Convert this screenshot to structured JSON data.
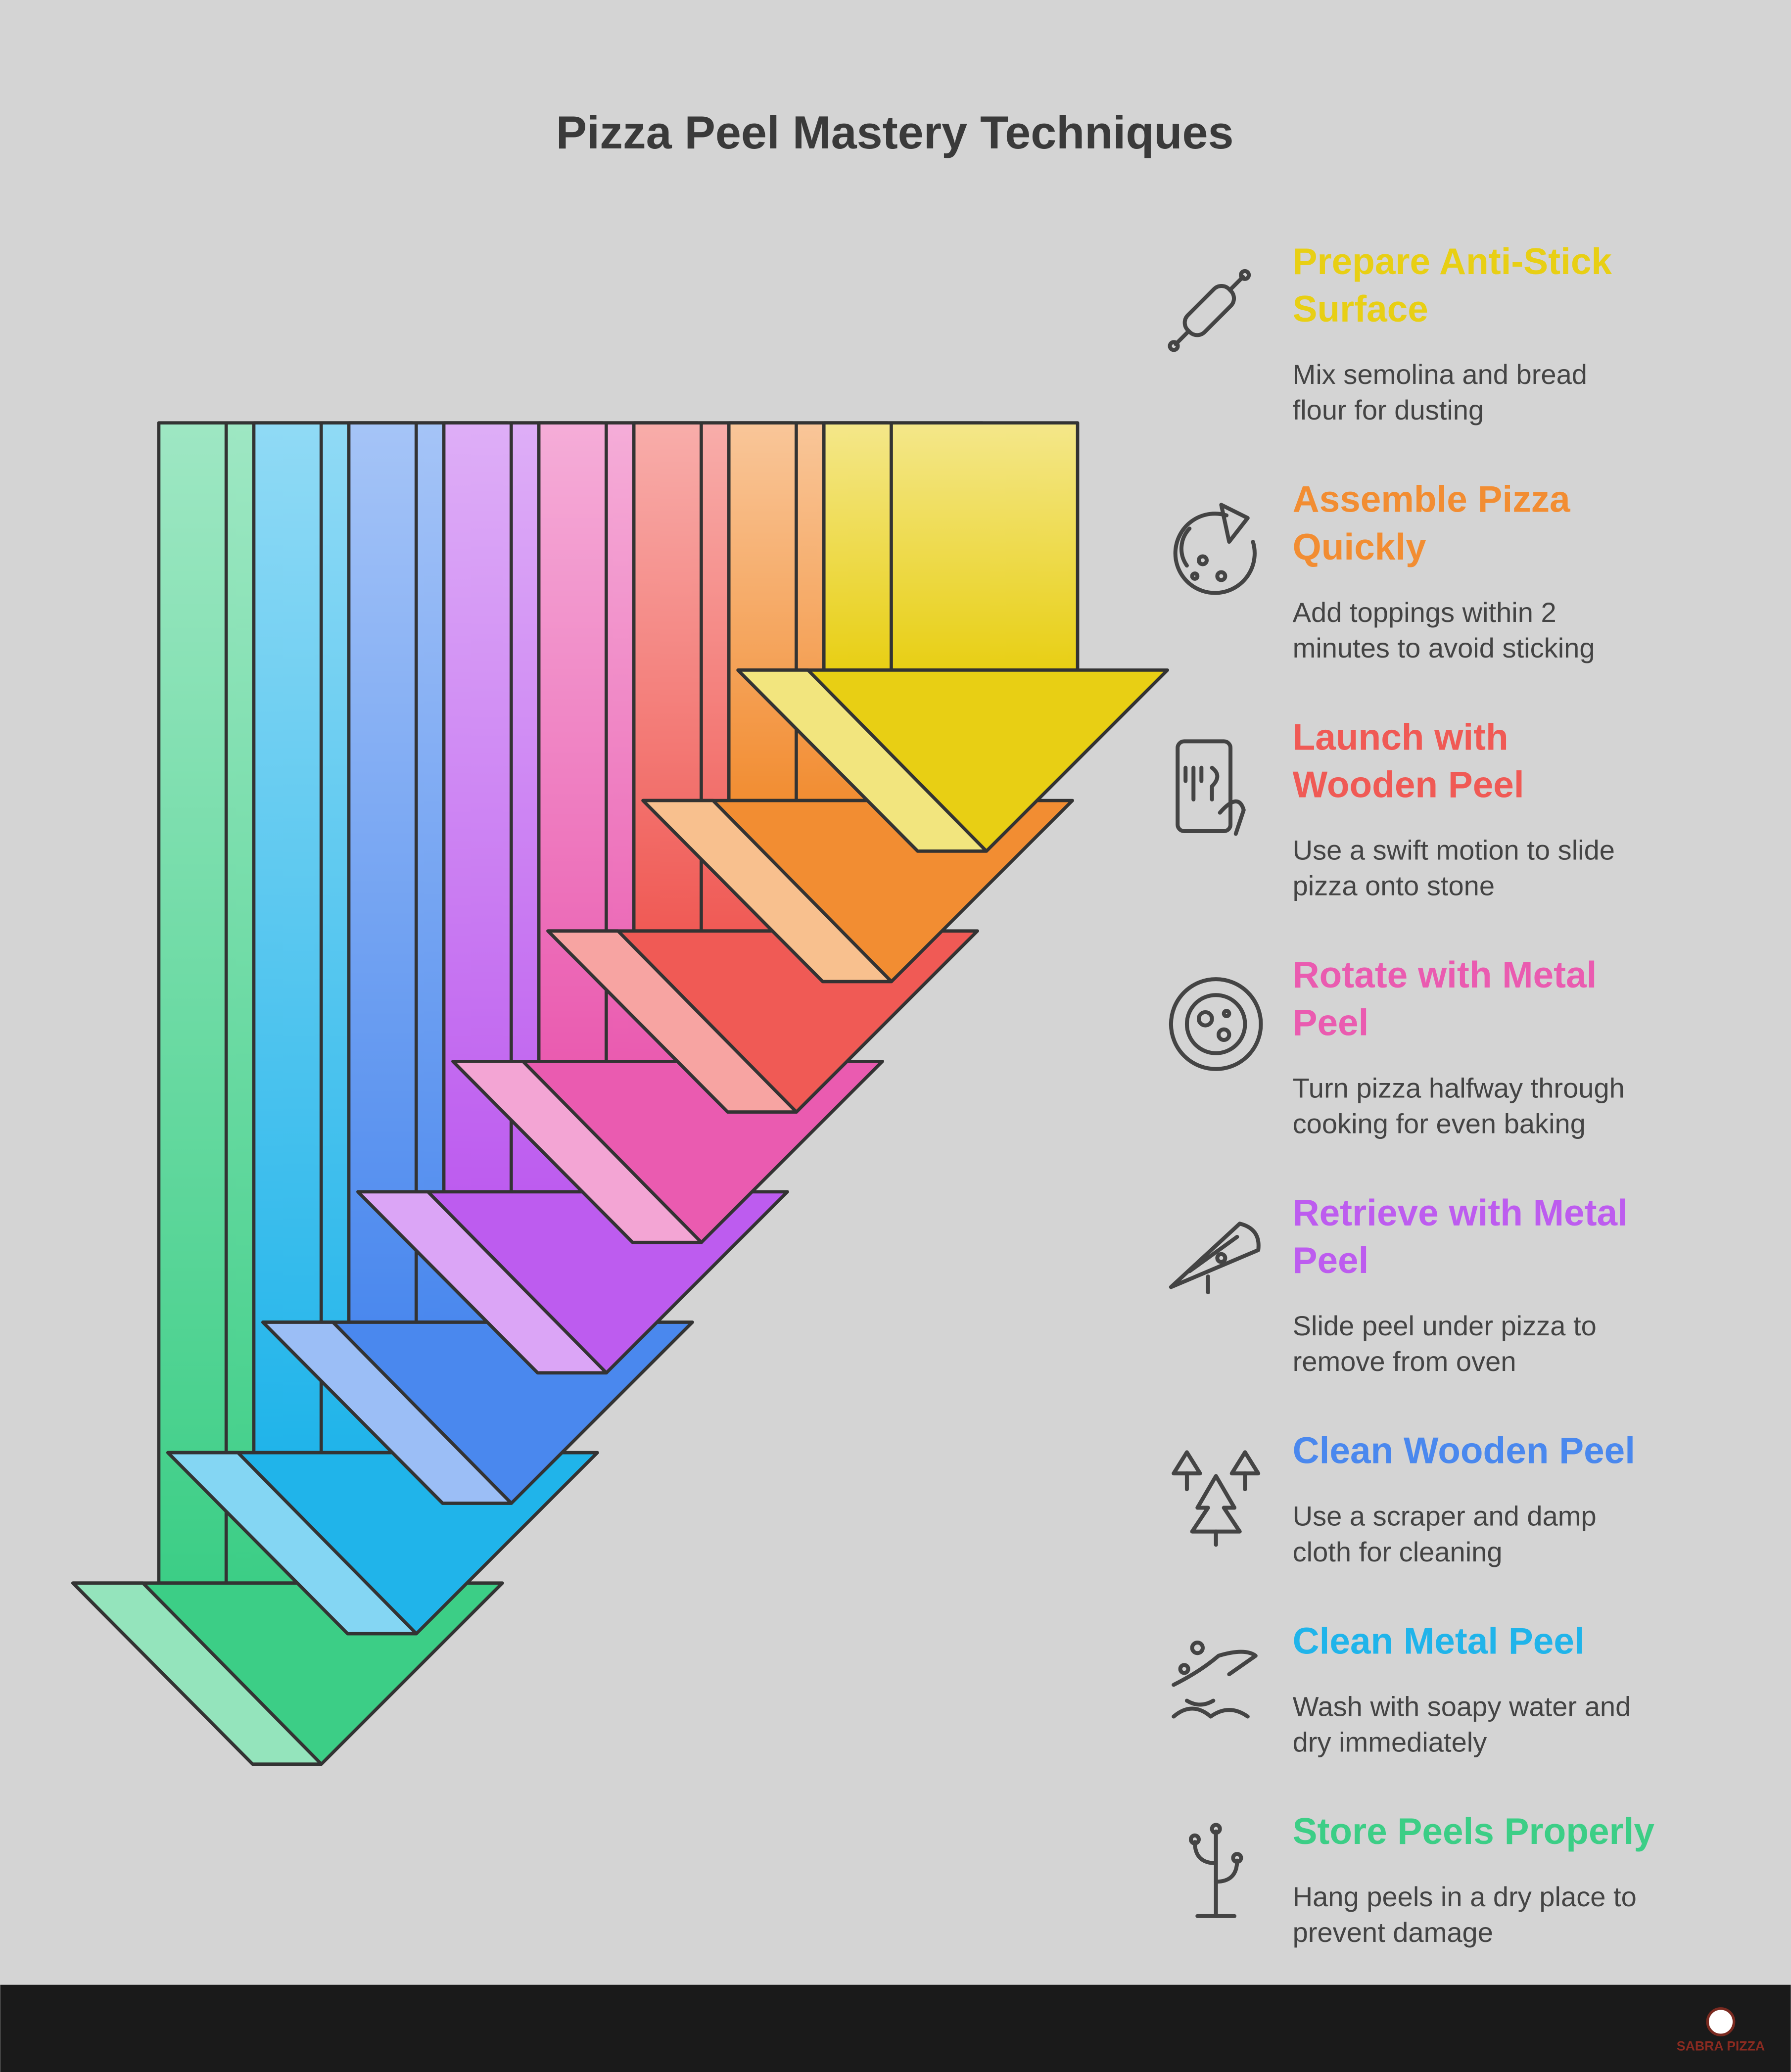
{
  "header": {
    "title": "Pizza Peel Mastery Techniques"
  },
  "items": [
    {
      "title": [
        "Prepare Anti-Stick",
        "Surface"
      ],
      "description": [
        "Mix semolina and bread",
        "flour for dusting"
      ],
      "color": "#e8cf14"
    },
    {
      "title": [
        "Assemble Pizza",
        "Quickly"
      ],
      "description": [
        "Add toppings within 2",
        "minutes to avoid sticking"
      ],
      "color": "#f28d32"
    },
    {
      "title": [
        "Launch with",
        "Wooden Peel"
      ],
      "description": [
        "Use a swift motion to slide",
        "pizza onto stone"
      ],
      "color": "#f05a55"
    },
    {
      "title": [
        "Rotate with Metal",
        "Peel"
      ],
      "description": [
        "Turn pizza halfway through",
        "cooking for even baking"
      ],
      "color": "#ea5bb0"
    },
    {
      "title": [
        "Retrieve with Metal",
        "Peel"
      ],
      "description": [
        "Slide peel under pizza to",
        "remove from oven"
      ],
      "color": "#bd5cef"
    },
    {
      "title": [
        "Clean Wooden Peel"
      ],
      "description": [
        "Use a scraper and damp",
        "cloth for cleaning"
      ],
      "color": "#4a88ee"
    },
    {
      "title": [
        "Clean Metal Peel"
      ],
      "description": [
        "Wash with soapy water and",
        "dry immediately"
      ],
      "color": "#20b4ea"
    },
    {
      "title": [
        "Store Peels Properly"
      ],
      "description": [
        "Hang peels in a dry place to",
        "prevent damage"
      ],
      "color": "#3cce86"
    }
  ],
  "footer": {
    "brand": "SABRA PIZZA"
  }
}
